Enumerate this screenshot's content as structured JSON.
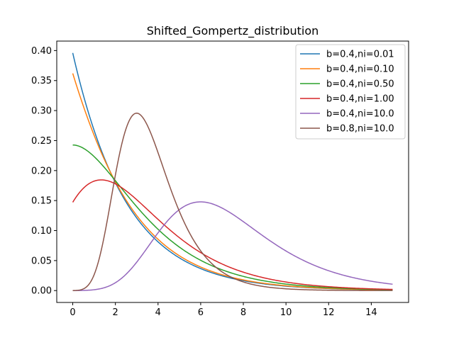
{
  "chart_data": {
    "type": "line",
    "title": "Shifted_Gompertz_distribution",
    "xlabel": "",
    "ylabel": "",
    "xlim": [
      -0.75,
      15.75
    ],
    "ylim": [
      -0.0198,
      0.4158
    ],
    "x_ticks": [
      0,
      2,
      4,
      6,
      8,
      10,
      12,
      14
    ],
    "x_tick_labels": [
      "0",
      "2",
      "4",
      "6",
      "8",
      "10",
      "12",
      "14"
    ],
    "y_ticks": [
      0.0,
      0.05,
      0.1,
      0.15,
      0.2,
      0.25,
      0.3,
      0.35,
      0.4
    ],
    "y_tick_labels": [
      "0.00",
      "0.05",
      "0.10",
      "0.15",
      "0.20",
      "0.25",
      "0.30",
      "0.35",
      "0.40"
    ],
    "grid": false,
    "legend_position": "upper right",
    "series": [
      {
        "name": "b=0.4,ni=0.01",
        "color": "#1f77b4",
        "b": 0.4,
        "eta": 0.01
      },
      {
        "name": "b=0.4,ni=0.10",
        "color": "#ff7f0e",
        "b": 0.4,
        "eta": 0.1
      },
      {
        "name": "b=0.4,ni=0.50",
        "color": "#2ca02c",
        "b": 0.4,
        "eta": 0.5
      },
      {
        "name": "b=0.4,ni=1.00",
        "color": "#d62728",
        "b": 0.4,
        "eta": 1.0
      },
      {
        "name": "b=0.4,ni=10.0",
        "color": "#9467bd",
        "b": 0.4,
        "eta": 10.0
      },
      {
        "name": "b=0.8,ni=10.0",
        "color": "#8c564b",
        "b": 0.8,
        "eta": 10.0
      }
    ],
    "x_range": [
      0,
      15
    ]
  }
}
